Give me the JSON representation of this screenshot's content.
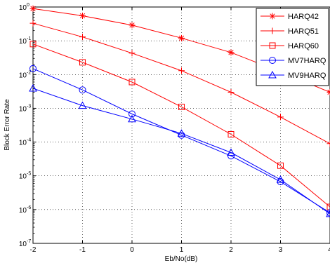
{
  "chart_data": {
    "type": "line",
    "title": "",
    "xlabel": "Eb/No(dB)",
    "ylabel": "Block Error Rate",
    "xlim": [
      -2,
      4
    ],
    "ylim": [
      1e-07,
      1
    ],
    "y_scale": "log",
    "grid": true,
    "legend_position": "top-right",
    "x": [
      -2,
      -1,
      0,
      1,
      2,
      3,
      4
    ],
    "x_tick_labels": [
      "-2",
      "-1",
      "0",
      "1",
      "2",
      "3",
      "4"
    ],
    "y_ticks": [
      {
        "base": "10",
        "exp": "0",
        "value": 1
      },
      {
        "base": "10",
        "exp": "-1",
        "value": 0.1
      },
      {
        "base": "10",
        "exp": "-2",
        "value": 0.01
      },
      {
        "base": "10",
        "exp": "-3",
        "value": 0.001
      },
      {
        "base": "10",
        "exp": "-4",
        "value": 0.0001
      },
      {
        "base": "10",
        "exp": "-5",
        "value": 1e-05
      },
      {
        "base": "10",
        "exp": "-6",
        "value": 1e-06
      },
      {
        "base": "10",
        "exp": "-7",
        "value": 1e-07
      }
    ],
    "series": [
      {
        "name": "HARQ42",
        "color": "#ff0000",
        "marker": "asterisk",
        "values": [
          0.9,
          0.55,
          0.29,
          0.12,
          0.045,
          0.012,
          0.003
        ]
      },
      {
        "name": "HARQ51",
        "color": "#ff0000",
        "marker": "plus",
        "values": [
          0.33,
          0.13,
          0.043,
          0.013,
          0.003,
          0.00055,
          9e-05
        ]
      },
      {
        "name": "HARQ60",
        "color": "#ff0000",
        "marker": "square",
        "values": [
          0.08,
          0.023,
          0.006,
          0.0011,
          0.00017,
          2e-05,
          1.2e-06
        ]
      },
      {
        "name": "MV7HARQ",
        "color": "#0000ff",
        "marker": "circle",
        "values": [
          0.015,
          0.0035,
          0.00068,
          0.00016,
          3.9e-05,
          6.7e-06,
          8e-07
        ]
      },
      {
        "name": "MV9HARQ",
        "color": "#0000ff",
        "marker": "triangle",
        "values": [
          0.0039,
          0.0012,
          0.00048,
          0.00018,
          4.9e-05,
          7.7e-06,
          7.5e-07
        ]
      }
    ]
  }
}
